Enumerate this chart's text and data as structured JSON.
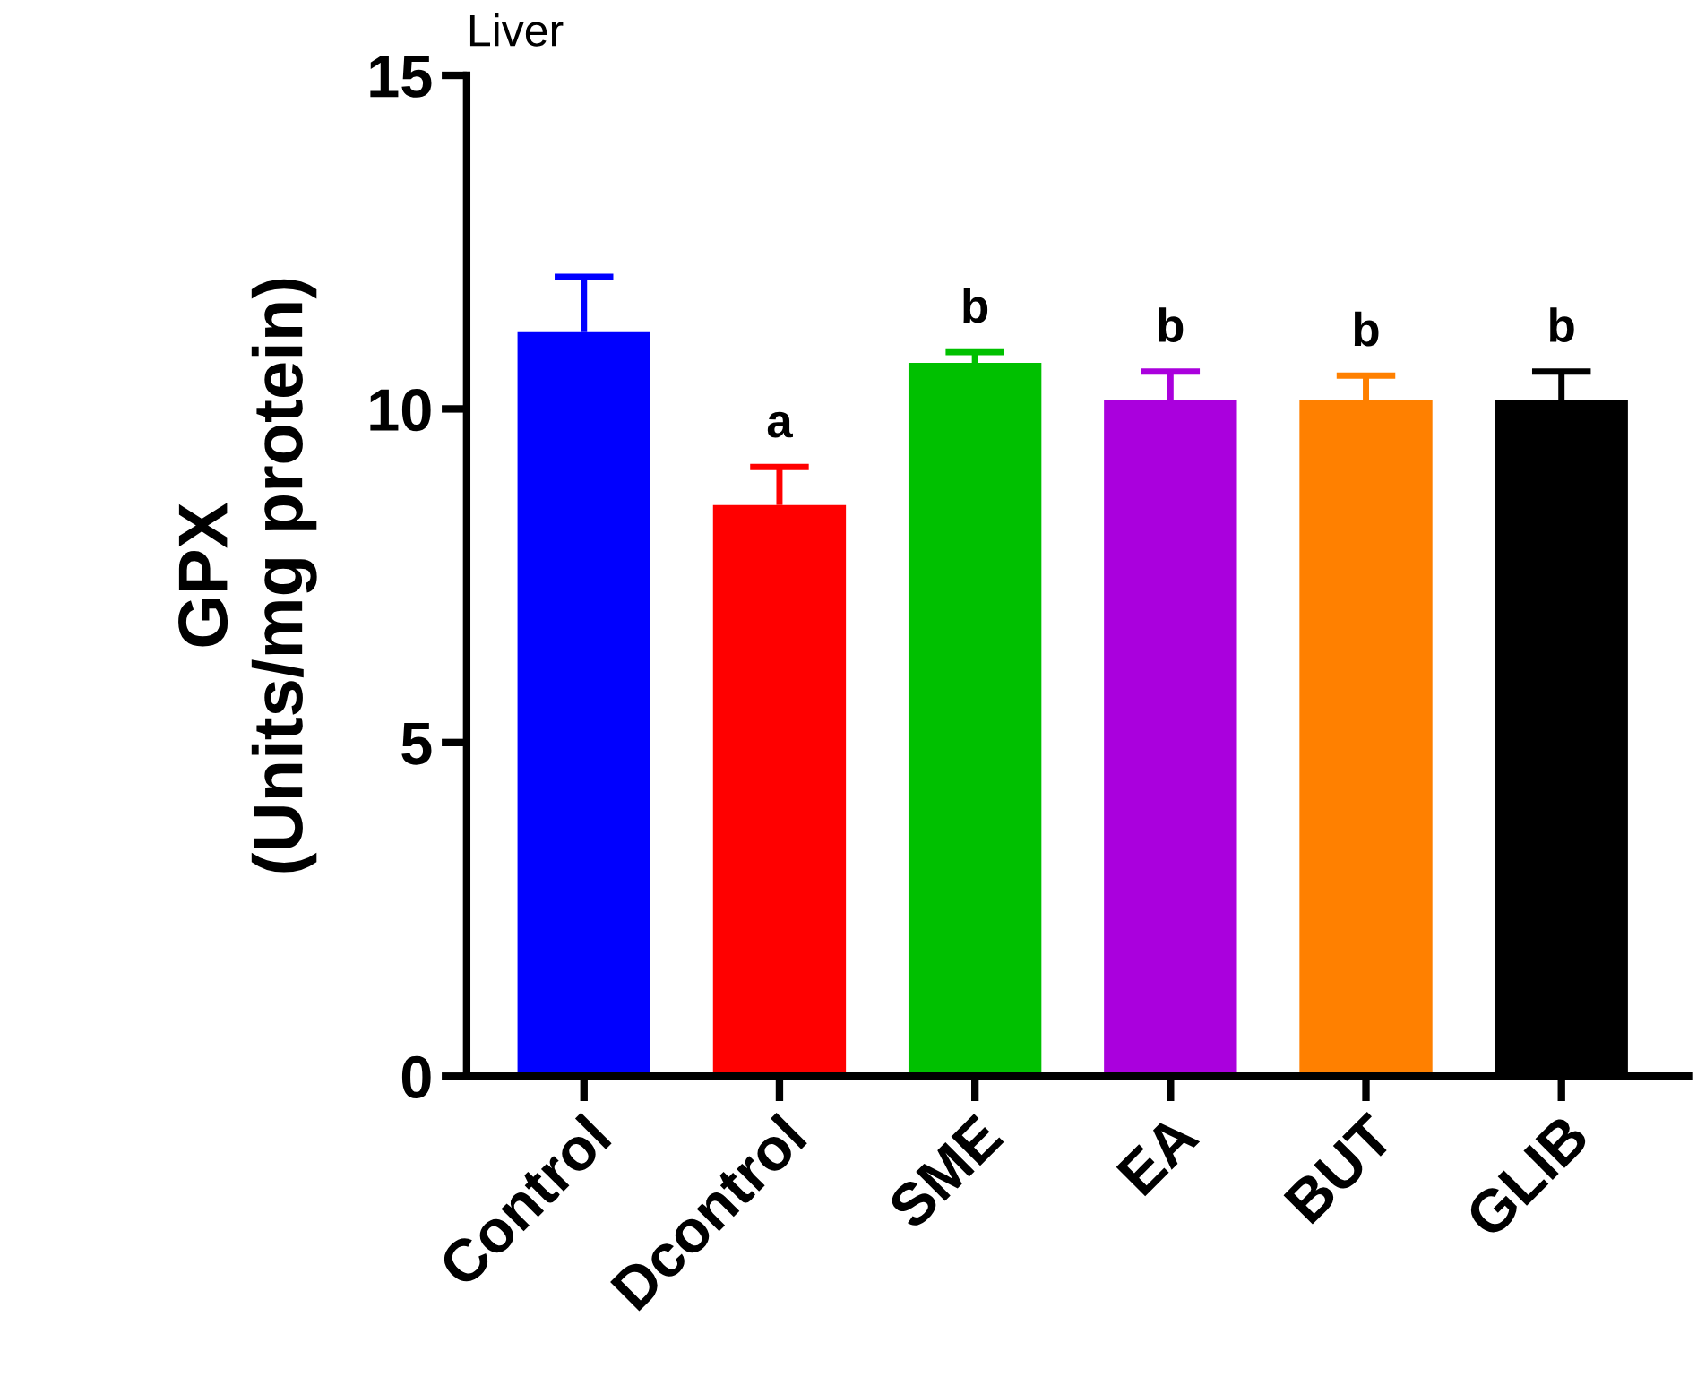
{
  "chart_data": {
    "type": "bar",
    "title": "Liver",
    "ylabel": "GPX\n(Units/mg protein)",
    "categories": [
      "Control",
      "Dcontrol",
      "SME",
      "EA",
      "BUT",
      "GLIB"
    ],
    "values": [
      11.15,
      8.56,
      10.69,
      10.13,
      10.13,
      10.13
    ],
    "colors": [
      "#0000ff",
      "#ff0000",
      "#00c000",
      "#aa00dd",
      "#ff8000",
      "#000000"
    ],
    "errors": [
      [
        11.15,
        11.98
      ],
      [
        8.56,
        9.13
      ],
      [
        10.69,
        10.85
      ],
      [
        10.13,
        10.56
      ],
      [
        10.13,
        10.5
      ],
      [
        10.13,
        10.56
      ]
    ],
    "annotations": [
      {
        "text": "a",
        "x": "Dcontrol",
        "y": 9.13
      },
      {
        "text": "b",
        "x": "SME",
        "y": 10.85
      },
      {
        "text": "b",
        "x": "EA",
        "y": 10.56
      },
      {
        "text": "b",
        "x": "BUT",
        "y": 10.5
      },
      {
        "text": "b",
        "x": "GLIB",
        "y": 10.56
      }
    ],
    "ylim": [
      0,
      15
    ],
    "yticks": [
      0,
      5,
      10,
      15
    ],
    "grid": false,
    "legend": false
  }
}
